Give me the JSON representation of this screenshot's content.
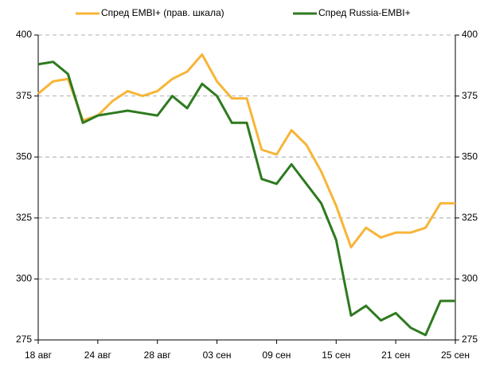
{
  "chart_data": {
    "type": "line",
    "categories": [
      "18 авг",
      null,
      null,
      null,
      "24 авг",
      null,
      null,
      null,
      "28 авг",
      null,
      null,
      null,
      "03 сен",
      null,
      null,
      null,
      "09 сен",
      null,
      null,
      null,
      "15 сен",
      null,
      null,
      null,
      "21 сен",
      null,
      null,
      null,
      "25 сен"
    ],
    "series": [
      {
        "name": "Спред EMBI+  (прав. шкала)",
        "color": "#f7b538",
        "axis": "y2",
        "values": [
          376,
          381,
          382,
          365,
          367,
          373,
          377,
          375,
          377,
          382,
          385,
          392,
          381,
          374,
          374,
          353,
          351,
          361,
          355,
          344,
          330,
          313,
          321,
          317,
          319,
          319,
          321,
          331,
          331
        ]
      },
      {
        "name": "Спред Russia-EMBI+",
        "color": "#2e7a1f",
        "values": [
          388,
          389,
          384,
          364,
          367,
          368,
          369,
          368,
          367,
          375,
          370,
          380,
          375,
          364,
          364,
          341,
          339,
          347,
          339,
          331,
          316,
          285,
          289,
          283,
          286,
          280,
          277,
          291,
          291
        ]
      }
    ],
    "ylim": [
      275,
      400
    ],
    "yticks": [
      275,
      300,
      325,
      350,
      375,
      400
    ],
    "y2lim": [
      275,
      400
    ],
    "y2ticks": [
      275,
      300,
      325,
      350,
      375,
      400
    ],
    "grid": true,
    "legend": "top"
  }
}
